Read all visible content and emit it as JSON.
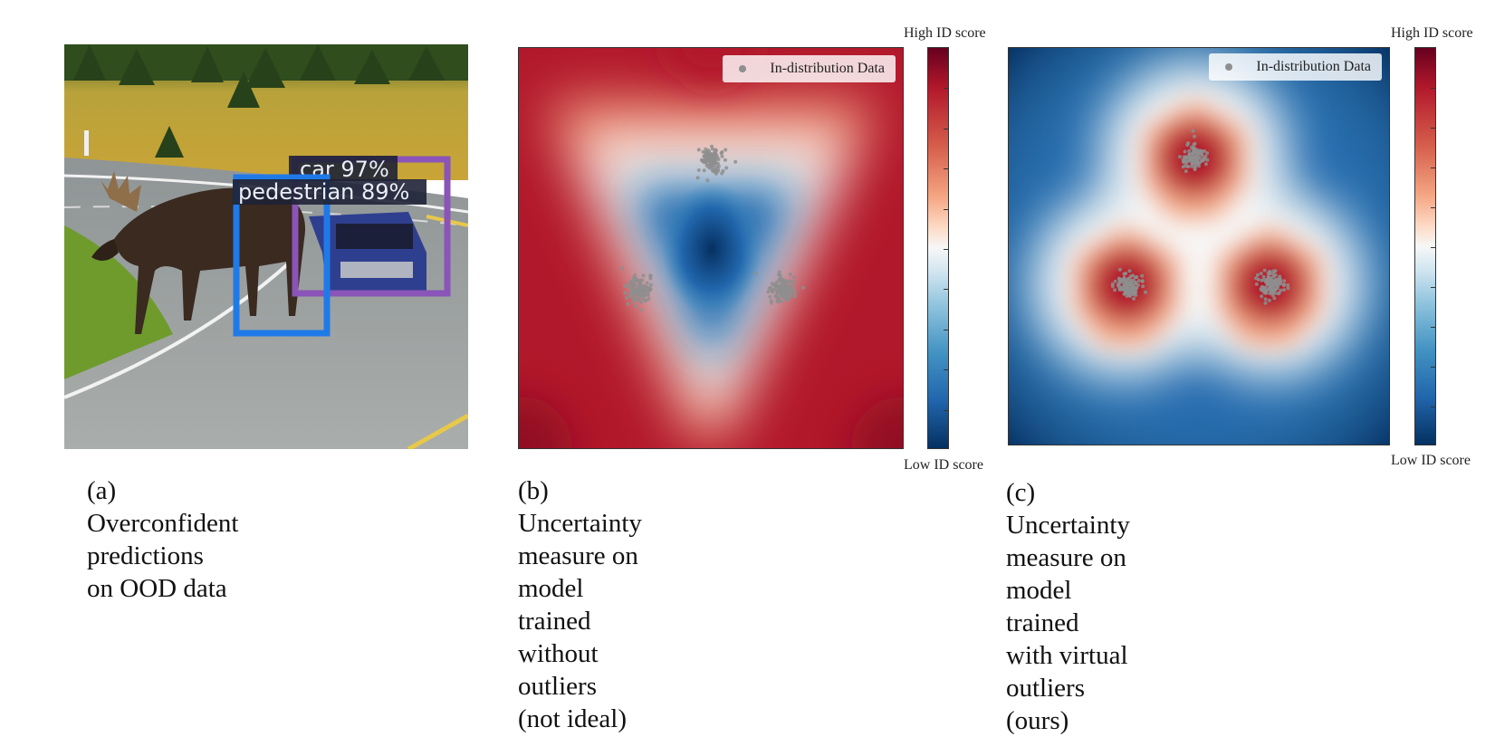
{
  "panel_a": {
    "caption_line1": "(a) Overconfident predictions",
    "caption_line2": "on OOD data",
    "detections": [
      {
        "label": "car 97%",
        "color": "#8a54b8"
      },
      {
        "label": "pedestrian 89%",
        "color": "#1f7ae8"
      }
    ]
  },
  "panel_b": {
    "legend_label": "In-distribution Data",
    "colorbar_top": "High ID score",
    "colorbar_bottom": "Low ID score",
    "caption_line1": "(b) Uncertainty measure on model trained",
    "caption_line2": "without outliers (not ideal)"
  },
  "panel_c": {
    "legend_label": "In-distribution Data",
    "colorbar_top": "High ID score",
    "colorbar_bottom": "Low ID score",
    "caption_line1": "(c) Uncertainty measure on model trained",
    "caption_line2": "with virtual outliers (ours)"
  },
  "colors": {
    "high": "#b2182b",
    "low": "#053061",
    "mid": "#f7f7f7",
    "points": "#8e8e8e"
  }
}
